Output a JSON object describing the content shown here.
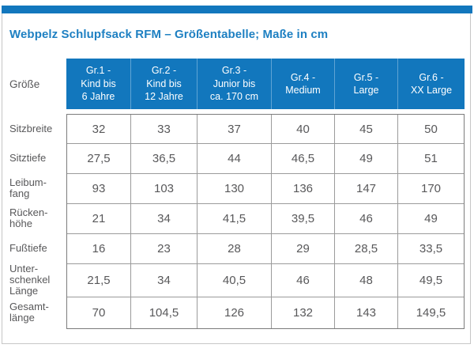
{
  "page": {
    "title": "Webpelz Schlupfsack RFM – Größentabelle; Maße in cm",
    "accent_color": "#1277bd",
    "text_color": "#58585a",
    "unit": "cm"
  },
  "table": {
    "corner_label": "Größe",
    "columns": [
      "Gr.1 -\nKind bis\n6 Jahre",
      "Gr.2 -\nKind bis\n12 Jahre",
      "Gr.3 -\nJunior bis\nca. 170 cm",
      "Gr.4 -\nMedium",
      "Gr.5 -\nLarge",
      "Gr.6 -\nXX Large"
    ],
    "rows": [
      {
        "label": "Sitzbreite",
        "values": [
          "32",
          "33",
          "37",
          "40",
          "45",
          "50"
        ]
      },
      {
        "label": "Sitztiefe",
        "values": [
          "27,5",
          "36,5",
          "44",
          "46,5",
          "49",
          "51"
        ]
      },
      {
        "label": "Leibum-\nfang",
        "values": [
          "93",
          "103",
          "130",
          "136",
          "147",
          "170"
        ]
      },
      {
        "label": "Rücken-\nhöhe",
        "values": [
          "21",
          "34",
          "41,5",
          "39,5",
          "46",
          "49"
        ]
      },
      {
        "label": "Fußtiefe",
        "values": [
          "16",
          "23",
          "28",
          "29",
          "28,5",
          "33,5"
        ]
      },
      {
        "label": "Unter-\nschenkel\nLänge",
        "values": [
          "21,5",
          "34",
          "40,5",
          "46",
          "48",
          "49,5"
        ]
      },
      {
        "label": "Gesamt-\nlänge",
        "values": [
          "70",
          "104,5",
          "126",
          "132",
          "143",
          "149,5"
        ]
      }
    ]
  }
}
